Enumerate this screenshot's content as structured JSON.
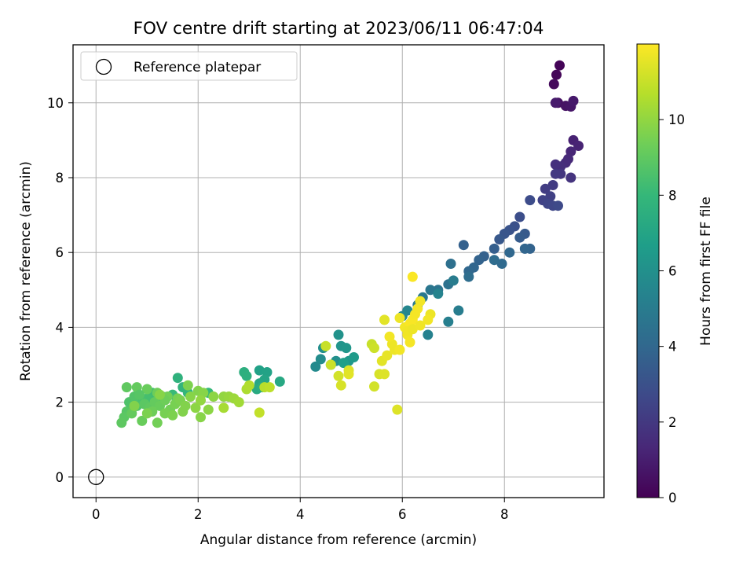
{
  "chart_data": {
    "type": "scatter",
    "title": "FOV centre drift starting at 2023/06/11 06:47:04",
    "xlabel": "Angular distance from reference (arcmin)",
    "ylabel": "Rotation from reference (arcmin)",
    "xlim": [
      -0.45,
      9.95
    ],
    "ylim": [
      -0.55,
      11.55
    ],
    "xticks": [
      0,
      2,
      4,
      6,
      8
    ],
    "yticks": [
      0,
      2,
      4,
      6,
      8,
      10
    ],
    "grid": true,
    "legend": {
      "position": "top-left",
      "entries": [
        "Reference platepar"
      ]
    },
    "reference_point": {
      "x": 0,
      "y": 0
    },
    "colorbar": {
      "label": "Hours from first FF file",
      "range": [
        0,
        12
      ],
      "ticks": [
        0,
        2,
        4,
        6,
        8,
        10
      ],
      "colormap": [
        "#440154",
        "#482878",
        "#3e4989",
        "#31688e",
        "#26828e",
        "#1f9e89",
        "#35b779",
        "#6ece58",
        "#b5de2b",
        "#fde725"
      ]
    },
    "series": [
      {
        "points": [
          [
            9.08,
            11.0,
            0.1
          ],
          [
            9.02,
            10.75,
            0.2
          ],
          [
            8.97,
            10.5,
            0.3
          ],
          [
            9.05,
            10.0,
            0.5
          ],
          [
            9.2,
            9.92,
            0.6
          ],
          [
            9.3,
            9.9,
            0.7
          ],
          [
            9.35,
            10.05,
            0.8
          ],
          [
            9.0,
            10.0,
            0.9
          ],
          [
            9.35,
            9.0,
            1.1
          ],
          [
            9.45,
            8.85,
            1.2
          ],
          [
            9.3,
            8.7,
            1.3
          ],
          [
            9.25,
            8.5,
            1.4
          ],
          [
            9.2,
            8.4,
            1.5
          ],
          [
            9.1,
            8.3,
            1.6
          ],
          [
            9.0,
            8.35,
            1.7
          ],
          [
            9.3,
            8.0,
            1.8
          ],
          [
            9.1,
            8.1,
            1.9
          ],
          [
            9.0,
            8.1,
            2.0
          ],
          [
            8.95,
            7.8,
            2.1
          ],
          [
            8.8,
            7.7,
            2.2
          ],
          [
            8.9,
            7.5,
            2.3
          ],
          [
            8.75,
            7.4,
            2.4
          ],
          [
            8.85,
            7.3,
            2.5
          ],
          [
            8.95,
            7.25,
            2.6
          ],
          [
            9.05,
            7.25,
            2.7
          ],
          [
            8.5,
            7.4,
            2.8
          ],
          [
            8.3,
            6.95,
            2.9
          ],
          [
            8.2,
            6.7,
            3.0
          ],
          [
            8.1,
            6.6,
            3.1
          ],
          [
            8.0,
            6.5,
            3.2
          ],
          [
            7.9,
            6.35,
            3.3
          ],
          [
            8.4,
            6.5,
            3.4
          ],
          [
            8.3,
            6.4,
            3.5
          ],
          [
            7.8,
            6.1,
            3.6
          ],
          [
            7.6,
            5.9,
            3.7
          ],
          [
            7.5,
            5.8,
            3.8
          ],
          [
            7.4,
            5.6,
            3.9
          ],
          [
            7.3,
            5.5,
            4.0
          ],
          [
            7.2,
            6.2,
            3.7
          ],
          [
            8.5,
            6.1,
            3.8
          ],
          [
            8.4,
            6.1,
            3.9
          ],
          [
            8.1,
            6.0,
            4.0
          ],
          [
            7.95,
            5.7,
            4.1
          ],
          [
            7.8,
            5.8,
            4.2
          ],
          [
            7.3,
            5.35,
            4.3
          ],
          [
            6.95,
            5.7,
            4.4
          ],
          [
            6.9,
            5.15,
            4.5
          ],
          [
            6.7,
            5.0,
            4.6
          ],
          [
            6.55,
            5.0,
            4.7
          ],
          [
            6.4,
            4.8,
            4.8
          ],
          [
            6.3,
            4.6,
            4.9
          ],
          [
            7.0,
            5.25,
            5.0
          ],
          [
            7.1,
            4.45,
            5.1
          ],
          [
            6.9,
            4.15,
            5.2
          ],
          [
            6.5,
            3.8,
            5.3
          ],
          [
            6.7,
            4.9,
            5.4
          ],
          [
            6.1,
            4.45,
            5.5
          ],
          [
            6.0,
            4.3,
            5.6
          ],
          [
            4.3,
            2.95,
            5.7
          ],
          [
            4.4,
            3.15,
            5.8
          ],
          [
            4.45,
            3.45,
            5.9
          ],
          [
            4.7,
            3.1,
            6.0
          ],
          [
            4.75,
            3.8,
            6.1
          ],
          [
            4.8,
            3.5,
            6.2
          ],
          [
            4.9,
            3.45,
            6.3
          ],
          [
            4.95,
            3.1,
            6.4
          ],
          [
            5.05,
            3.2,
            6.5
          ],
          [
            4.6,
            3.0,
            6.6
          ],
          [
            4.85,
            3.05,
            6.7
          ],
          [
            3.2,
            2.85,
            6.8
          ],
          [
            3.35,
            2.8,
            6.9
          ],
          [
            3.3,
            2.6,
            7.0
          ],
          [
            3.2,
            2.5,
            7.1
          ],
          [
            3.6,
            2.55,
            7.2
          ],
          [
            3.15,
            2.35,
            7.3
          ],
          [
            3.25,
            2.4,
            7.4
          ],
          [
            2.9,
            2.8,
            7.5
          ],
          [
            2.95,
            2.7,
            7.6
          ],
          [
            1.6,
            2.65,
            7.7
          ],
          [
            1.7,
            2.4,
            7.8
          ],
          [
            1.8,
            2.25,
            7.9
          ],
          [
            2.2,
            2.25,
            8.0
          ],
          [
            1.5,
            2.2,
            8.1
          ],
          [
            1.3,
            2.15,
            8.2
          ],
          [
            1.1,
            2.25,
            8.3
          ],
          [
            1.0,
            2.1,
            8.4
          ],
          [
            0.9,
            2.0,
            8.5
          ],
          [
            0.8,
            1.9,
            8.6
          ],
          [
            0.7,
            1.85,
            8.7
          ],
          [
            0.6,
            1.75,
            8.8
          ],
          [
            0.55,
            1.6,
            8.9
          ],
          [
            0.5,
            1.45,
            8.95
          ],
          [
            0.6,
            2.4,
            9.0
          ],
          [
            0.8,
            2.4,
            9.1
          ],
          [
            1.0,
            2.35,
            9.2
          ],
          [
            1.2,
            2.25,
            9.3
          ],
          [
            1.4,
            2.15,
            9.4
          ],
          [
            1.6,
            2.1,
            9.5
          ],
          [
            1.8,
            2.45,
            9.6
          ],
          [
            2.0,
            2.3,
            9.7
          ],
          [
            2.1,
            2.25,
            9.8
          ],
          [
            2.3,
            2.15,
            9.9
          ],
          [
            0.65,
            2.0,
            8.6
          ],
          [
            0.75,
            2.15,
            8.7
          ],
          [
            0.85,
            2.2,
            8.8
          ],
          [
            0.95,
            1.95,
            8.9
          ],
          [
            1.05,
            1.85,
            9.0
          ],
          [
            1.15,
            2.0,
            9.1
          ],
          [
            1.25,
            1.9,
            9.2
          ],
          [
            1.35,
            2.05,
            9.3
          ],
          [
            1.45,
            1.8,
            9.4
          ],
          [
            1.55,
            1.95,
            9.5
          ],
          [
            1.65,
            2.05,
            9.6
          ],
          [
            1.75,
            1.9,
            9.7
          ],
          [
            1.85,
            2.15,
            9.8
          ],
          [
            1.95,
            1.85,
            9.9
          ],
          [
            2.05,
            2.05,
            10.0
          ],
          [
            0.7,
            1.7,
            9.1
          ],
          [
            0.9,
            1.5,
            9.2
          ],
          [
            1.1,
            1.75,
            9.3
          ],
          [
            1.2,
            1.45,
            9.4
          ],
          [
            1.35,
            1.7,
            9.5
          ],
          [
            1.5,
            1.65,
            9.6
          ],
          [
            1.7,
            1.75,
            9.7
          ],
          [
            2.05,
            1.6,
            9.8
          ],
          [
            2.2,
            1.8,
            9.9
          ],
          [
            1.0,
            1.7,
            9.6
          ],
          [
            0.75,
            1.9,
            9.7
          ],
          [
            1.25,
            2.2,
            9.8
          ],
          [
            2.5,
            2.15,
            10.0
          ],
          [
            2.6,
            2.15,
            10.1
          ],
          [
            2.7,
            2.1,
            10.2
          ],
          [
            2.8,
            2.0,
            10.3
          ],
          [
            2.5,
            1.85,
            10.4
          ],
          [
            2.95,
            2.35,
            10.5
          ],
          [
            3.0,
            2.45,
            10.6
          ],
          [
            3.3,
            2.4,
            10.7
          ],
          [
            3.4,
            2.4,
            10.8
          ],
          [
            3.2,
            1.72,
            10.9
          ],
          [
            4.5,
            3.5,
            11.0
          ],
          [
            4.6,
            3.0,
            11.1
          ],
          [
            4.75,
            2.7,
            11.2
          ],
          [
            4.8,
            2.45,
            11.3
          ],
          [
            4.95,
            2.85,
            11.4
          ],
          [
            4.95,
            2.75,
            11.5
          ],
          [
            5.4,
            3.55,
            11.0
          ],
          [
            5.45,
            3.45,
            11.1
          ],
          [
            5.45,
            2.42,
            11.2
          ],
          [
            5.55,
            2.75,
            11.3
          ],
          [
            5.65,
            2.75,
            11.4
          ],
          [
            5.6,
            3.1,
            11.5
          ],
          [
            5.7,
            3.25,
            11.6
          ],
          [
            5.8,
            3.55,
            11.7
          ],
          [
            5.85,
            3.4,
            11.7
          ],
          [
            5.75,
            3.75,
            11.8
          ],
          [
            5.95,
            3.4,
            11.8
          ],
          [
            5.65,
            4.2,
            11.5
          ],
          [
            5.9,
            1.8,
            11.4
          ],
          [
            5.95,
            4.25,
            11.7
          ],
          [
            6.05,
            4.0,
            11.8
          ],
          [
            6.1,
            3.8,
            11.8
          ],
          [
            6.15,
            4.1,
            11.9
          ],
          [
            6.2,
            4.2,
            11.9
          ],
          [
            6.25,
            4.35,
            11.85
          ],
          [
            6.3,
            4.5,
            11.85
          ],
          [
            6.35,
            4.7,
            11.8
          ],
          [
            6.2,
            5.35,
            11.95
          ],
          [
            6.1,
            3.9,
            11.75
          ],
          [
            6.2,
            3.95,
            11.7
          ],
          [
            6.35,
            4.05,
            11.75
          ],
          [
            6.55,
            4.35,
            11.7
          ],
          [
            6.5,
            4.2,
            11.8
          ],
          [
            6.15,
            3.6,
            11.85
          ]
        ]
      }
    ]
  }
}
